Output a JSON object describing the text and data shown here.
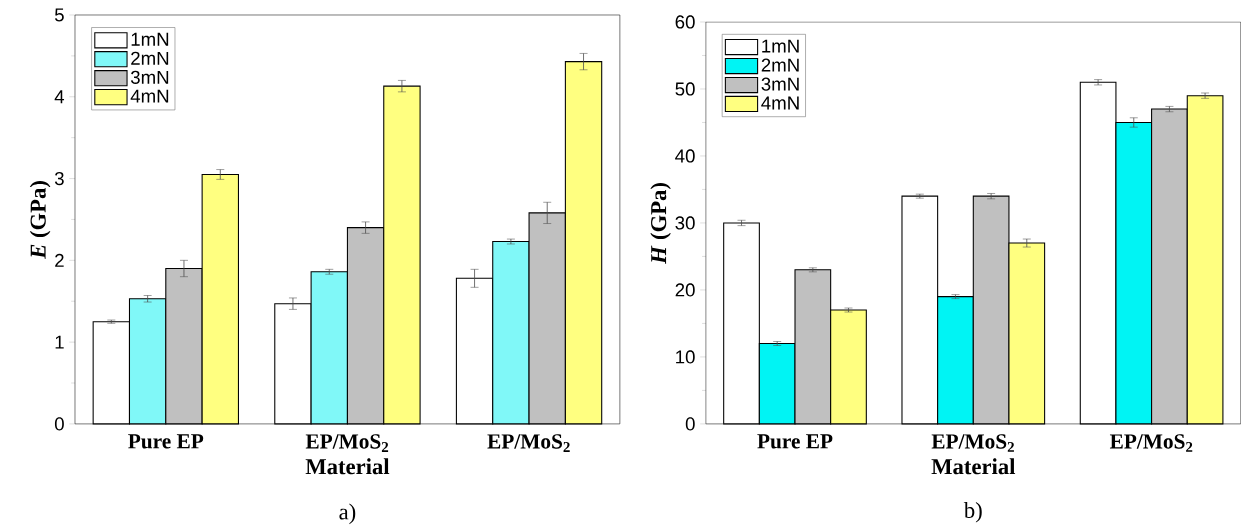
{
  "chart_data": [
    {
      "type": "bar",
      "categories": [
        "Pure EP",
        "EP/MoS$_{2}$",
        "EP/MoS$_{2}$"
      ],
      "xlabel": "Material",
      "ylabel": "*E* (GPa)",
      "ylim": [
        0,
        5
      ],
      "yticks": [
        0,
        1,
        2,
        3,
        4,
        5
      ],
      "grid": false,
      "legend": "top left",
      "annotations": [
        "a)"
      ],
      "series": [
        {
          "name": "1mN",
          "color": "#ffffff",
          "values": [
            1.25,
            1.47,
            1.78
          ],
          "errors": [
            0.02,
            0.07,
            0.11
          ]
        },
        {
          "name": "2mN",
          "color": "#80f8f8",
          "values": [
            1.53,
            1.86,
            2.23
          ],
          "errors": [
            0.04,
            0.03,
            0.03
          ]
        },
        {
          "name": "3mN",
          "color": "#c0c0c0",
          "values": [
            1.9,
            2.4,
            2.58
          ],
          "errors": [
            0.1,
            0.07,
            0.13
          ]
        },
        {
          "name": "4mN",
          "color": "#ffff80",
          "values": [
            3.05,
            4.13,
            4.43
          ],
          "errors": [
            0.06,
            0.07,
            0.1
          ]
        }
      ]
    },
    {
      "type": "bar",
      "categories": [
        "Pure EP",
        "EP/MoS$_{2}$",
        "EP/MoS$_{2}$"
      ],
      "xlabel": "Material",
      "ylabel": "*H* (GPa)",
      "ylim": [
        0,
        60
      ],
      "yticks": [
        0,
        10,
        20,
        30,
        40,
        50,
        60
      ],
      "grid": false,
      "legend": "top left",
      "annotations": [
        "b)"
      ],
      "series": [
        {
          "name": "1mN",
          "color": "#ffffff",
          "values": [
            30,
            34,
            51
          ],
          "errors": [
            0.4,
            0.3,
            0.4
          ]
        },
        {
          "name": "2mN",
          "color": "#00f4f4",
          "values": [
            12,
            19,
            45
          ],
          "errors": [
            0.3,
            0.3,
            0.7
          ]
        },
        {
          "name": "3mN",
          "color": "#c0c0c0",
          "values": [
            23,
            34,
            47
          ],
          "errors": [
            0.3,
            0.4,
            0.4
          ]
        },
        {
          "name": "4mN",
          "color": "#ffff80",
          "values": [
            17,
            27,
            49
          ],
          "errors": [
            0.3,
            0.6,
            0.4
          ]
        }
      ]
    }
  ]
}
